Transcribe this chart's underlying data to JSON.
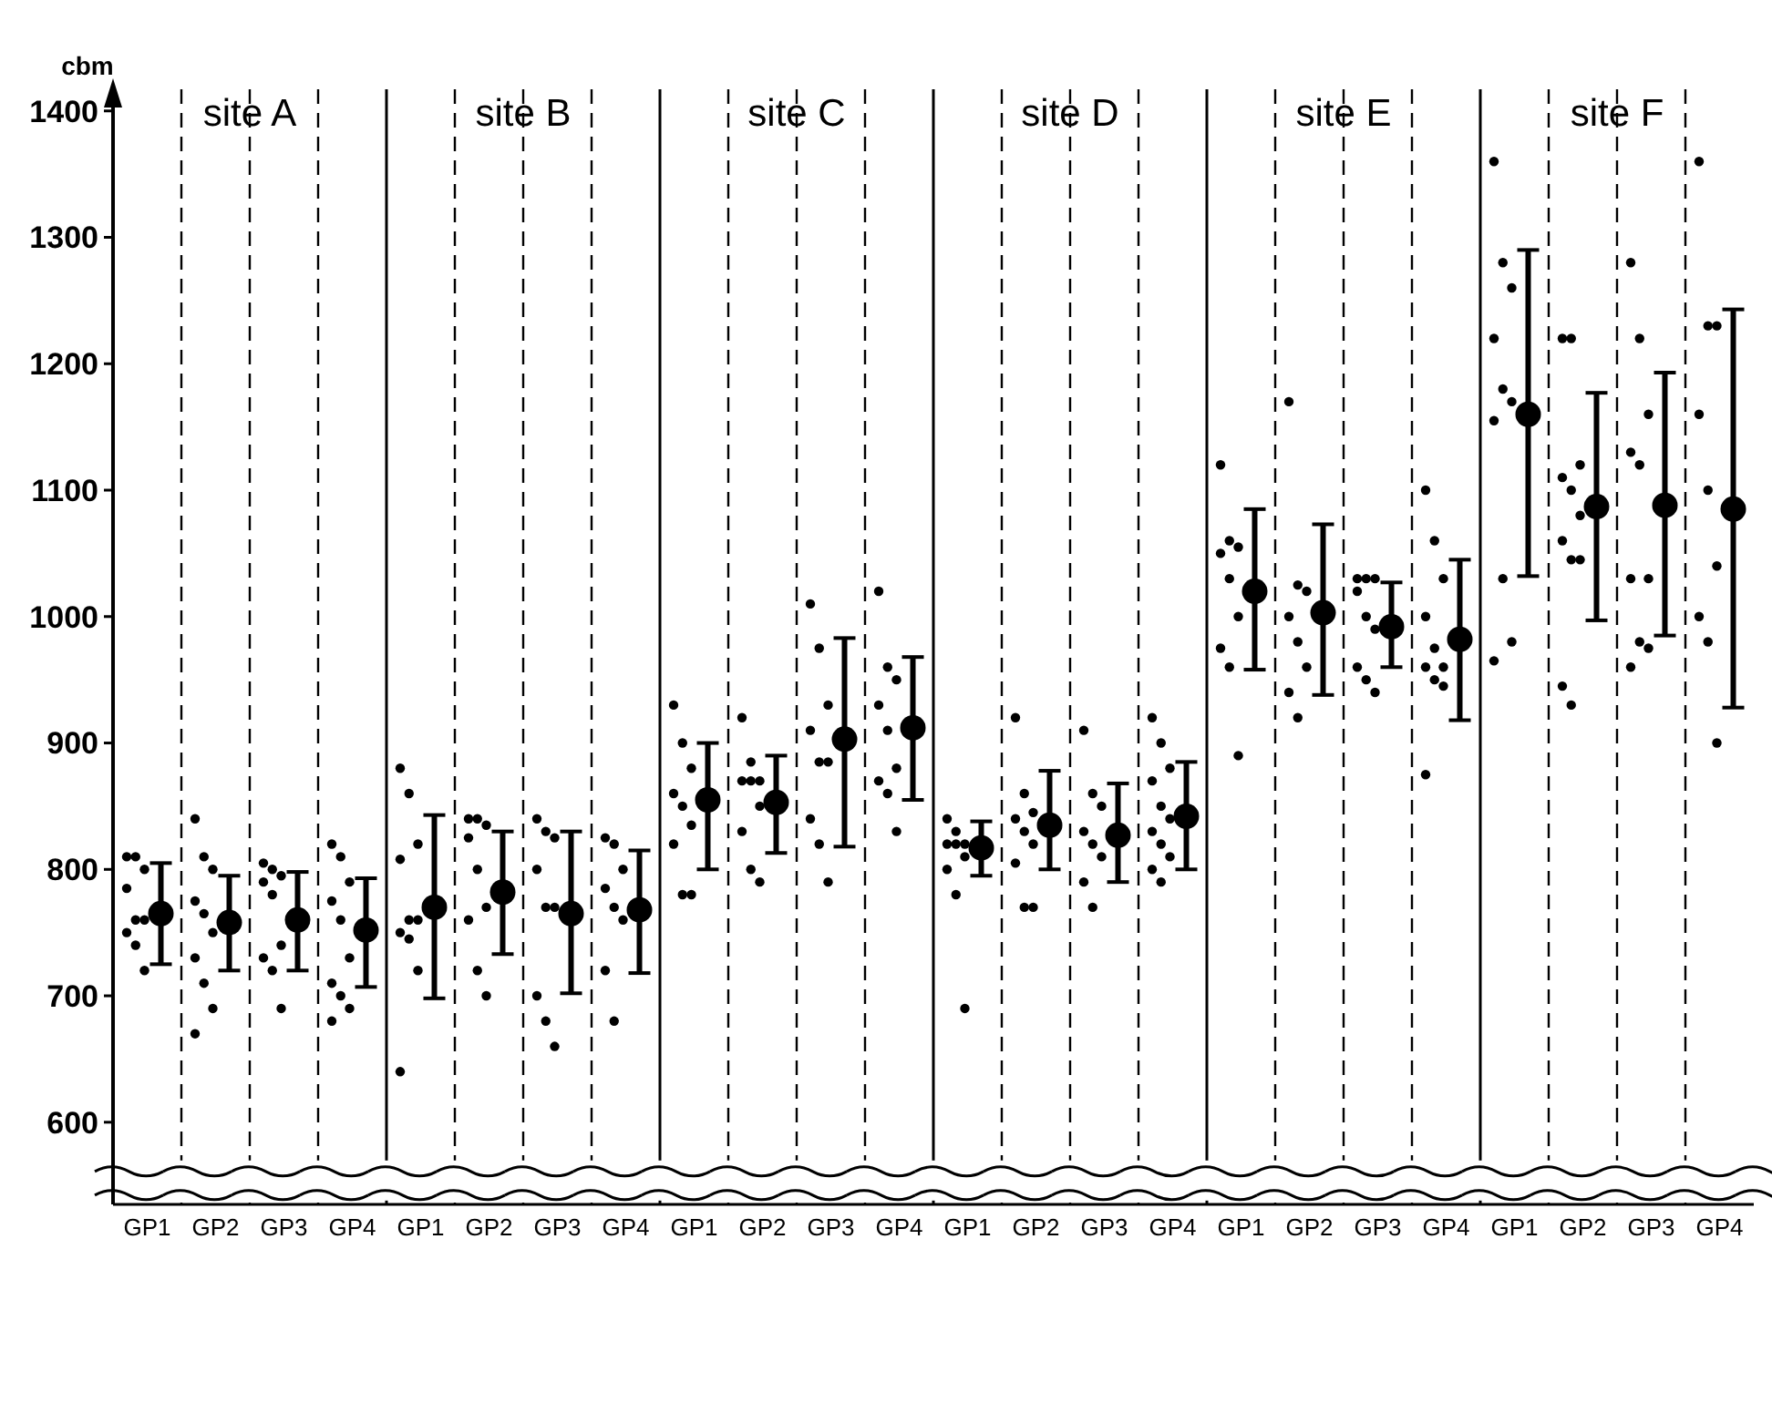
{
  "chart_data": {
    "type": "scatter",
    "ylabel": "cbm",
    "annotations": [
      "site A",
      "site B",
      "site C",
      "site D",
      "site E",
      "site F"
    ],
    "categories": [
      "GP1",
      "GP2",
      "GP3",
      "GP4",
      "GP1",
      "GP2",
      "GP3",
      "GP4",
      "GP1",
      "GP2",
      "GP3",
      "GP4",
      "GP1",
      "GP2",
      "GP3",
      "GP4",
      "GP1",
      "GP2",
      "GP3",
      "GP4",
      "GP1",
      "GP2",
      "GP3",
      "GP4"
    ],
    "ylim": [
      535,
      1420
    ],
    "yticks": [
      600,
      700,
      800,
      900,
      1000,
      1100,
      1200,
      1300,
      1400
    ],
    "grid": "x",
    "series": [
      {
        "color": "#000000",
        "values": [
          810,
          840,
          805,
          820,
          880,
          840,
          840,
          825,
          930,
          920,
          1010,
          1020,
          840,
          920,
          910,
          920,
          1120,
          1170,
          1030,
          1100,
          1360,
          1220,
          1280,
          1360
        ]
      },
      {
        "color": "#000000",
        "values": [
          810,
          810,
          800,
          810,
          860,
          840,
          830,
          820,
          900,
          885,
          975,
          960,
          830,
          860,
          860,
          900,
          1060,
          1025,
          1030,
          1060,
          1280,
          1220,
          1220,
          1230
        ]
      },
      {
        "color": "#000000",
        "values": [
          800,
          800,
          795,
          790,
          820,
          835,
          825,
          800,
          880,
          870,
          930,
          950,
          820,
          845,
          850,
          880,
          1055,
          1020,
          1030,
          1030,
          1260,
          1120,
          1160,
          1230
        ]
      },
      {
        "color": "#000000",
        "values": [
          785,
          775,
          790,
          775,
          808,
          825,
          800,
          785,
          860,
          870,
          910,
          930,
          820,
          840,
          830,
          870,
          1050,
          1000,
          1020,
          1000,
          1220,
          1110,
          1130,
          1160
        ]
      },
      {
        "color": "#000000",
        "values": [
          760,
          765,
          780,
          760,
          760,
          800,
          770,
          770,
          850,
          870,
          885,
          910,
          820,
          830,
          820,
          850,
          1030,
          980,
          1000,
          975,
          1180,
          1100,
          1120,
          1100
        ]
      },
      {
        "color": "#000000",
        "values": [
          760,
          750,
          740,
          730,
          760,
          770,
          770,
          760,
          835,
          850,
          885,
          880,
          810,
          820,
          810,
          840,
          1000,
          960,
          990,
          960,
          1170,
          1080,
          1030,
          1040
        ]
      },
      {
        "color": "#000000",
        "values": [
          750,
          730,
          730,
          710,
          750,
          760,
          700,
          720,
          820,
          830,
          840,
          870,
          800,
          805,
          790,
          830,
          975,
          940,
          960,
          960,
          1155,
          1060,
          1030,
          1000
        ]
      },
      {
        "color": "#000000",
        "values": [
          740,
          710,
          720,
          700,
          745,
          720,
          680,
          680,
          780,
          800,
          820,
          860,
          780,
          770,
          770,
          820,
          960,
          920,
          950,
          950,
          1030,
          1045,
          980,
          980
        ]
      },
      {
        "color": "#000000",
        "values": [
          720,
          690,
          690,
          690,
          720,
          700,
          660,
          null,
          780,
          790,
          790,
          830,
          690,
          770,
          null,
          810,
          890,
          null,
          940,
          945,
          980,
          1045,
          975,
          900
        ]
      },
      {
        "color": "#000000",
        "values": [
          null,
          670,
          null,
          680,
          640,
          null,
          null,
          null,
          null,
          null,
          null,
          null,
          null,
          null,
          null,
          800,
          null,
          null,
          null,
          875,
          965,
          945,
          960,
          null
        ]
      },
      {
        "color": "#000000",
        "values": [
          null,
          null,
          null,
          null,
          null,
          null,
          null,
          null,
          null,
          null,
          null,
          null,
          null,
          null,
          null,
          790,
          null,
          null,
          null,
          null,
          null,
          930,
          null,
          null
        ]
      },
      {
        "color": "#000000",
        "values": [
          765,
          758,
          760,
          752,
          770,
          782,
          765,
          768,
          855,
          853,
          903,
          912,
          817,
          835,
          827,
          842,
          1020,
          1003,
          992,
          982,
          1160,
          1087,
          1088,
          1085
        ],
        "errors": [
          [
            725,
            805
          ],
          [
            720,
            795
          ],
          [
            720,
            798
          ],
          [
            707,
            793
          ],
          [
            698,
            843
          ],
          [
            733,
            830
          ],
          [
            702,
            830
          ],
          [
            718,
            815
          ],
          [
            800,
            900
          ],
          [
            813,
            890
          ],
          [
            818,
            983
          ],
          [
            855,
            968
          ],
          [
            795,
            838
          ],
          [
            800,
            878
          ],
          [
            790,
            868
          ],
          [
            800,
            885
          ],
          [
            958,
            1085
          ],
          [
            938,
            1073
          ],
          [
            960,
            1027
          ],
          [
            918,
            1045
          ],
          [
            1032,
            1290
          ],
          [
            997,
            1177
          ],
          [
            985,
            1193
          ],
          [
            928,
            1243
          ]
        ]
      }
    ]
  }
}
